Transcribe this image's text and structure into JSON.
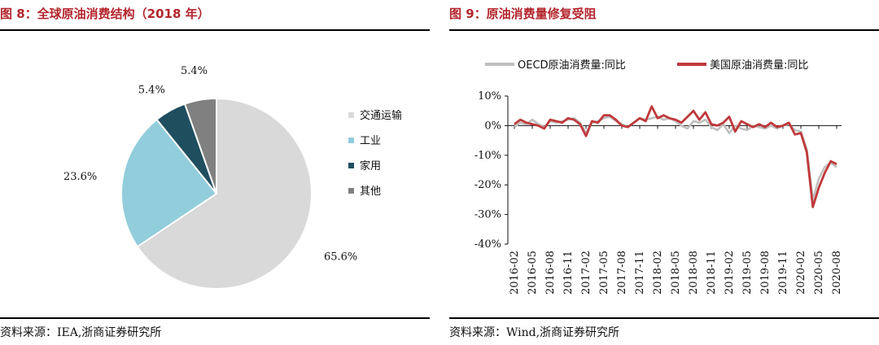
{
  "left": {
    "title": "图 8：全球原油消费结构（2018 年）",
    "source": "资料来源：IEA,浙商证券研究所",
    "chart_data": {
      "type": "pie",
      "title": "全球原油消费结构（2018 年）",
      "slices": [
        {
          "name": "交通运输",
          "value": 65.6,
          "label": "65.6%",
          "color": "#d9d9d9"
        },
        {
          "name": "工业",
          "value": 23.6,
          "label": "23.6%",
          "color": "#92cddc"
        },
        {
          "name": "家用",
          "value": 5.4,
          "label": "5.4%",
          "color": "#1f4e5f"
        },
        {
          "name": "其他",
          "value": 5.4,
          "label": "5.4%",
          "color": "#808080"
        }
      ],
      "legend_placement": "right"
    }
  },
  "right": {
    "title": "图 9：原油消费量修复受阻",
    "source": "资料来源：Wind,浙商证券研究所",
    "chart_data": {
      "type": "line",
      "title": "原油消费量修复受阻",
      "ylim": [
        -40,
        10
      ],
      "yticks": [
        10,
        0,
        -10,
        -20,
        -30,
        -40
      ],
      "ytick_labels": [
        "10%",
        "0%",
        "-10%",
        "-20%",
        "-30%",
        "-40%"
      ],
      "y_unit": "%",
      "grid": false,
      "legend_placement": "top",
      "x_tick_labels": [
        "2016-02",
        "2016-05",
        "2016-08",
        "2016-11",
        "2017-02",
        "2017-05",
        "2017-08",
        "2017-11",
        "2018-02",
        "2018-05",
        "2018-08",
        "2018-11",
        "2019-02",
        "2019-05",
        "2019-08",
        "2019-11",
        "2020-02",
        "2020-05",
        "2020-08"
      ],
      "x": [
        "2016-02",
        "2016-03",
        "2016-04",
        "2016-05",
        "2016-06",
        "2016-07",
        "2016-08",
        "2016-09",
        "2016-10",
        "2016-11",
        "2016-12",
        "2017-01",
        "2017-02",
        "2017-03",
        "2017-04",
        "2017-05",
        "2017-06",
        "2017-07",
        "2017-08",
        "2017-09",
        "2017-10",
        "2017-11",
        "2017-12",
        "2018-01",
        "2018-02",
        "2018-03",
        "2018-04",
        "2018-05",
        "2018-06",
        "2018-07",
        "2018-08",
        "2018-09",
        "2018-10",
        "2018-11",
        "2018-12",
        "2019-01",
        "2019-02",
        "2019-03",
        "2019-04",
        "2019-05",
        "2019-06",
        "2019-07",
        "2019-08",
        "2019-09",
        "2019-10",
        "2019-11",
        "2019-12",
        "2020-01",
        "2020-02",
        "2020-03",
        "2020-04",
        "2020-05",
        "2020-06",
        "2020-07",
        "2020-08"
      ],
      "series": [
        {
          "name": "OECD原油消费量:同比",
          "color": "#bfbfbf",
          "values": [
            -0.5,
            1.0,
            0.5,
            2.0,
            0.5,
            -0.5,
            1.5,
            1.0,
            1.5,
            2.0,
            2.5,
            1.0,
            -2.5,
            1.0,
            1.5,
            2.5,
            3.0,
            1.5,
            0.5,
            -0.5,
            1.0,
            2.5,
            2.0,
            2.5,
            3.0,
            2.0,
            2.5,
            1.5,
            0.0,
            -1.0,
            1.5,
            1.0,
            2.0,
            -0.5,
            -1.5,
            0.5,
            -2.5,
            0.0,
            -1.0,
            -1.5,
            0.0,
            -0.5,
            -1.0,
            0.0,
            -1.0,
            0.0,
            0.5,
            -1.5,
            -2.0,
            -8.0,
            -25.0,
            -18.0,
            -14.0,
            -12.5,
            -14.0
          ]
        },
        {
          "name": "美国原油消费量:同比",
          "color": "#c0393b",
          "values": [
            0.5,
            2.0,
            1.0,
            0.5,
            0.0,
            -1.0,
            2.0,
            1.5,
            1.0,
            2.5,
            2.0,
            0.5,
            -3.5,
            1.5,
            1.0,
            3.5,
            3.5,
            2.0,
            0.0,
            -0.5,
            1.0,
            2.5,
            1.5,
            6.5,
            2.5,
            3.5,
            2.5,
            2.0,
            1.0,
            3.0,
            5.0,
            2.0,
            4.5,
            0.5,
            0.0,
            1.0,
            3.0,
            -2.0,
            1.5,
            0.5,
            -0.5,
            0.5,
            -0.5,
            1.0,
            -0.5,
            0.0,
            1.0,
            -3.0,
            -2.5,
            -9.0,
            -27.5,
            -21.0,
            -16.0,
            -12.0,
            -13.0
          ]
        }
      ]
    }
  }
}
